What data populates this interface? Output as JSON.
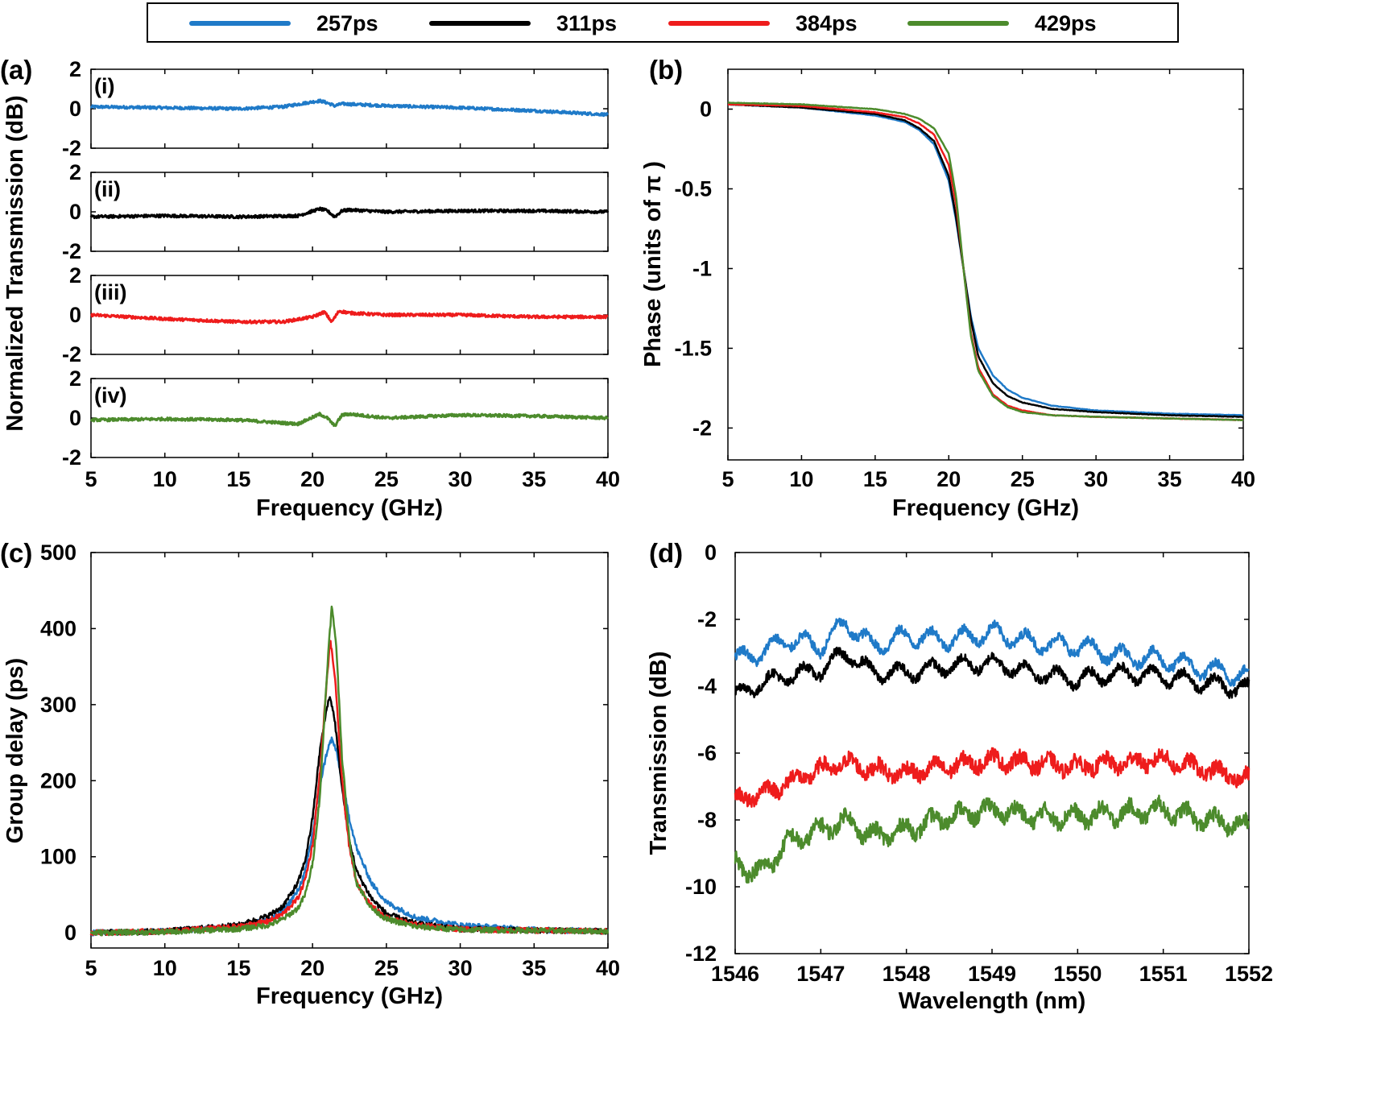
{
  "legend": {
    "items": [
      {
        "label": "257ps",
        "color": "#1f7ac8"
      },
      {
        "label": "311ps",
        "color": "#000000"
      },
      {
        "label": "384ps",
        "color": "#ee1c1c"
      },
      {
        "label": "429ps",
        "color": "#4c8b2c"
      }
    ]
  },
  "chart_data": [
    {
      "panel": "(a)",
      "type": "line",
      "ylabel": "Normalized Transmission (dB)",
      "xlabel": "Frequency (GHz)",
      "xlim": [
        5,
        40
      ],
      "xticks": [
        "5",
        "10",
        "15",
        "20",
        "25",
        "30",
        "35",
        "40"
      ],
      "subplots": [
        {
          "label": "(i)",
          "series": "257ps",
          "ylim": [
            -2,
            2
          ],
          "yticks": [
            "2",
            "0",
            "-2"
          ],
          "x": [
            5,
            10,
            15,
            18,
            20,
            20.5,
            21,
            21.5,
            22,
            25,
            30,
            35,
            40
          ],
          "y": [
            0.1,
            0.05,
            0.0,
            0.1,
            0.35,
            0.4,
            0.3,
            0.15,
            0.25,
            0.15,
            0.05,
            -0.1,
            -0.3
          ]
        },
        {
          "label": "(ii)",
          "series": "311ps",
          "ylim": [
            -2,
            2
          ],
          "yticks": [
            "2",
            "0",
            "-2"
          ],
          "x": [
            5,
            10,
            15,
            19,
            20.5,
            21,
            21.5,
            22,
            22.5,
            25,
            30,
            35,
            40
          ],
          "y": [
            -0.25,
            -0.2,
            -0.25,
            -0.2,
            0.15,
            0.05,
            -0.25,
            0.05,
            0.1,
            0.0,
            0.05,
            0.05,
            0.0
          ]
        },
        {
          "label": "(iii)",
          "series": "384ps",
          "ylim": [
            -2,
            2
          ],
          "yticks": [
            "2",
            "0",
            "-2"
          ],
          "x": [
            5,
            10,
            15,
            18,
            20,
            20.8,
            21.3,
            21.8,
            22.5,
            25,
            30,
            35,
            40
          ],
          "y": [
            0.0,
            -0.2,
            -0.35,
            -0.35,
            -0.1,
            0.15,
            -0.35,
            0.2,
            0.1,
            0.0,
            0.0,
            -0.1,
            -0.1
          ]
        },
        {
          "label": "(iv)",
          "series": "429ps",
          "ylim": [
            -2,
            2
          ],
          "yticks": [
            "2",
            "0",
            "-2"
          ],
          "x": [
            5,
            10,
            15,
            19,
            20.5,
            21,
            21.5,
            22,
            22.5,
            25,
            30,
            35,
            40
          ],
          "y": [
            -0.1,
            -0.05,
            -0.1,
            -0.3,
            0.2,
            0.0,
            -0.4,
            0.15,
            0.2,
            0.0,
            0.15,
            0.1,
            0.0
          ]
        }
      ]
    },
    {
      "panel": "(b)",
      "type": "line",
      "ylabel": "Phase (units of π )",
      "xlabel": "Frequency (GHz)",
      "xlim": [
        5,
        40
      ],
      "ylim": [
        -2.2,
        0.25
      ],
      "xticks": [
        "5",
        "10",
        "15",
        "20",
        "25",
        "30",
        "35",
        "40"
      ],
      "yticks": [
        "0",
        "-0.5",
        "-1",
        "-1.5",
        "-2"
      ],
      "series": [
        {
          "name": "257ps",
          "x": [
            5,
            10,
            15,
            17,
            18,
            19,
            20,
            20.5,
            21,
            21.5,
            22,
            23,
            24,
            25,
            27,
            30,
            35,
            40
          ],
          "y": [
            0.03,
            0.01,
            -0.04,
            -0.08,
            -0.13,
            -0.22,
            -0.45,
            -0.7,
            -1.0,
            -1.3,
            -1.5,
            -1.67,
            -1.76,
            -1.81,
            -1.86,
            -1.89,
            -1.91,
            -1.92
          ]
        },
        {
          "name": "311ps",
          "x": [
            5,
            10,
            15,
            17,
            18,
            19,
            20,
            20.5,
            21,
            21.5,
            22,
            23,
            24,
            25,
            27,
            30,
            35,
            40
          ],
          "y": [
            0.03,
            0.01,
            -0.03,
            -0.07,
            -0.12,
            -0.2,
            -0.42,
            -0.68,
            -1.0,
            -1.32,
            -1.55,
            -1.72,
            -1.8,
            -1.84,
            -1.88,
            -1.9,
            -1.92,
            -1.93
          ]
        },
        {
          "name": "384ps",
          "x": [
            5,
            10,
            15,
            17,
            18,
            19,
            20,
            20.5,
            21,
            21.5,
            22,
            23,
            24,
            25,
            27,
            30,
            35,
            40
          ],
          "y": [
            0.03,
            0.02,
            -0.02,
            -0.05,
            -0.09,
            -0.16,
            -0.35,
            -0.6,
            -1.0,
            -1.4,
            -1.62,
            -1.79,
            -1.86,
            -1.89,
            -1.92,
            -1.93,
            -1.94,
            -1.95
          ]
        },
        {
          "name": "429ps",
          "x": [
            5,
            10,
            15,
            17,
            18,
            19,
            20,
            20.5,
            21,
            21.5,
            22,
            23,
            24,
            25,
            27,
            30,
            35,
            40
          ],
          "y": [
            0.04,
            0.03,
            0.0,
            -0.03,
            -0.06,
            -0.12,
            -0.28,
            -0.55,
            -1.0,
            -1.42,
            -1.64,
            -1.8,
            -1.87,
            -1.9,
            -1.92,
            -1.93,
            -1.94,
            -1.95
          ]
        }
      ]
    },
    {
      "panel": "(c)",
      "type": "line",
      "ylabel": "Group delay (ps)",
      "xlabel": "Frequency (GHz)",
      "xlim": [
        5,
        40
      ],
      "ylim": [
        -20,
        500
      ],
      "xticks": [
        "5",
        "10",
        "15",
        "20",
        "25",
        "30",
        "35",
        "40"
      ],
      "yticks": [
        "500",
        "400",
        "300",
        "200",
        "100",
        "0"
      ],
      "series": [
        {
          "name": "257ps",
          "x": [
            5,
            10,
            15,
            17,
            18,
            19,
            19.5,
            20,
            20.5,
            21,
            21.3,
            21.6,
            22,
            22.5,
            23,
            24,
            25,
            27,
            30,
            35,
            40
          ],
          "y": [
            0,
            2,
            8,
            17,
            28,
            55,
            80,
            130,
            195,
            240,
            255,
            240,
            200,
            150,
            110,
            65,
            40,
            20,
            10,
            4,
            2
          ]
        },
        {
          "name": "311ps",
          "x": [
            5,
            10,
            15,
            17,
            18,
            19,
            19.5,
            20,
            20.5,
            21,
            21.2,
            21.5,
            22,
            22.5,
            23,
            24,
            25,
            27,
            30,
            35,
            40
          ],
          "y": [
            0,
            2,
            10,
            22,
            35,
            65,
            95,
            150,
            240,
            300,
            310,
            280,
            190,
            120,
            80,
            45,
            25,
            12,
            5,
            3,
            2
          ]
        },
        {
          "name": "384ps",
          "x": [
            5,
            10,
            15,
            17,
            18,
            19,
            19.5,
            20,
            20.5,
            21,
            21.2,
            21.5,
            22,
            22.5,
            23,
            24,
            25,
            27,
            30,
            35,
            40
          ],
          "y": [
            0,
            2,
            8,
            15,
            25,
            45,
            70,
            115,
            210,
            340,
            384,
            340,
            200,
            110,
            65,
            35,
            20,
            10,
            5,
            3,
            2
          ]
        },
        {
          "name": "429ps",
          "x": [
            5,
            10,
            15,
            17,
            18,
            19,
            19.5,
            20,
            20.5,
            21,
            21.3,
            21.6,
            22,
            22.5,
            23,
            24,
            25,
            27,
            30,
            35,
            40
          ],
          "y": [
            0,
            1,
            5,
            10,
            18,
            32,
            50,
            90,
            180,
            350,
            429,
            380,
            230,
            120,
            65,
            32,
            18,
            8,
            4,
            3,
            2
          ]
        }
      ]
    },
    {
      "panel": "(d)",
      "type": "line",
      "ylabel": "Transmission (dB)",
      "xlabel": "Wavelength (nm)",
      "xlim": [
        1546,
        1552
      ],
      "ylim": [
        -12,
        0
      ],
      "xticks": [
        "1546",
        "1547",
        "1548",
        "1549",
        "1550",
        "1551",
        "1552"
      ],
      "yticks": [
        "0",
        "-2",
        "-4",
        "-6",
        "-8",
        "-10",
        "-12"
      ],
      "series": [
        {
          "name": "257ps",
          "x": [
            1546,
            1546.3,
            1546.6,
            1547,
            1547.3,
            1547.6,
            1548,
            1548.5,
            1549,
            1549.5,
            1550,
            1550.5,
            1551,
            1551.5,
            1552
          ],
          "y": [
            -3.2,
            -3.0,
            -2.6,
            -2.8,
            -2.1,
            -2.8,
            -2.5,
            -2.6,
            -2.4,
            -2.7,
            -2.8,
            -3.1,
            -3.2,
            -3.5,
            -3.7
          ]
        },
        {
          "name": "311ps",
          "x": [
            1546,
            1546.3,
            1546.6,
            1547,
            1547.3,
            1547.6,
            1548,
            1548.5,
            1549,
            1549.5,
            1550,
            1550.5,
            1551,
            1551.5,
            1552
          ],
          "y": [
            -4.3,
            -3.9,
            -3.7,
            -3.5,
            -3.0,
            -3.6,
            -3.6,
            -3.4,
            -3.3,
            -3.6,
            -3.8,
            -3.6,
            -3.7,
            -3.9,
            -4.1
          ]
        },
        {
          "name": "384ps",
          "x": [
            1546,
            1546.3,
            1546.6,
            1547,
            1547.3,
            1547.6,
            1548,
            1548.5,
            1549,
            1549.5,
            1550,
            1550.5,
            1551,
            1551.5,
            1552
          ],
          "y": [
            -7.4,
            -7.2,
            -6.9,
            -6.5,
            -6.3,
            -6.5,
            -6.6,
            -6.4,
            -6.2,
            -6.3,
            -6.4,
            -6.3,
            -6.2,
            -6.5,
            -6.8
          ]
        },
        {
          "name": "429ps",
          "x": [
            1546,
            1546.3,
            1546.6,
            1547,
            1547.3,
            1547.6,
            1548,
            1548.5,
            1549,
            1549.5,
            1550,
            1550.5,
            1551,
            1551.5,
            1552
          ],
          "y": [
            -9.3,
            -9.6,
            -8.7,
            -8.3,
            -8.0,
            -8.5,
            -8.3,
            -7.9,
            -7.7,
            -7.9,
            -7.9,
            -7.8,
            -7.7,
            -8.0,
            -8.2
          ]
        }
      ]
    }
  ]
}
